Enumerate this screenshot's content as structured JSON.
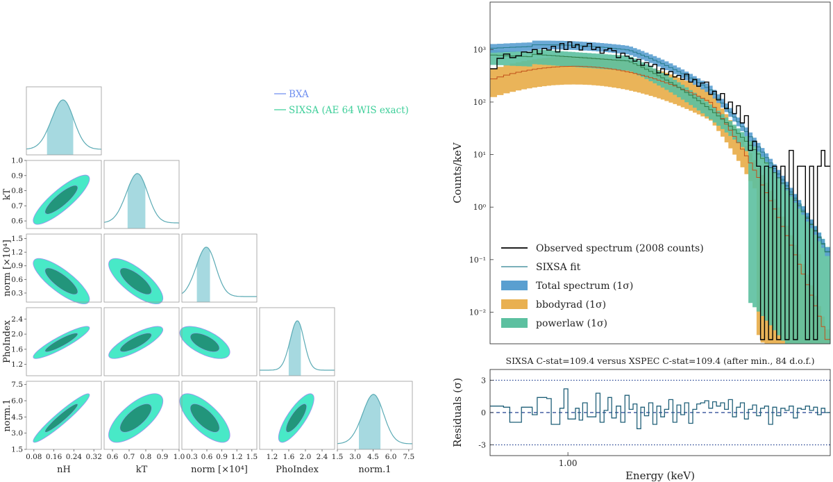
{
  "chart_data": [
    {
      "type": "corner",
      "title": "",
      "parameters": [
        "nH",
        "kT",
        "norm [×10⁴]",
        "PhoIndex",
        "norm.1"
      ],
      "param_short": [
        "nH",
        "kT",
        "norm [×10⁴]",
        "PhoIndex",
        "norm.1"
      ],
      "xlabels": [
        "nH",
        "kT",
        "norm [×10⁴]",
        "PhoIndex",
        "norm.1"
      ],
      "ylabels": [
        "",
        "kT",
        "norm [×10⁴]",
        "PhoIndex",
        "norm.1"
      ],
      "ranges": [
        [
          0.05,
          0.35
        ],
        [
          0.55,
          1.0
        ],
        [
          0.1,
          1.6
        ],
        [
          0.9,
          2.7
        ],
        [
          1.5,
          7.8
        ]
      ],
      "x_ticks": [
        [
          "0.08",
          "0.16",
          "0.24",
          "0.32"
        ],
        [
          "0.6",
          "0.7",
          "0.8",
          "0.9",
          "1.0"
        ],
        [
          "0.3",
          "0.6",
          "0.9",
          "1.2",
          "1.5"
        ],
        [
          "1.2",
          "1.6",
          "2.0",
          "2.4"
        ],
        [
          "1.5",
          "3.0",
          "4.5",
          "6.0",
          "7.5"
        ]
      ],
      "y_ticks": [
        [],
        [
          "0.6",
          "0.7",
          "0.8",
          "0.9",
          "1.0"
        ],
        [
          "0.3",
          "0.6",
          "0.9",
          "1.2",
          "1.5"
        ],
        [
          "1.2",
          "1.6",
          "2.0",
          "2.4"
        ],
        [
          "1.5",
          "3.0",
          "4.5",
          "6.0",
          "7.5"
        ]
      ],
      "x_tick_values": [
        [
          0.08,
          0.16,
          0.24,
          0.32
        ],
        [
          0.6,
          0.7,
          0.8,
          0.9,
          1.0
        ],
        [
          0.3,
          0.6,
          0.9,
          1.2,
          1.5
        ],
        [
          1.2,
          1.6,
          2.0,
          2.4
        ],
        [
          1.5,
          3.0,
          4.5,
          6.0,
          7.5
        ]
      ],
      "means": [
        0.19,
        0.74,
        0.56,
        1.78,
        4.4
      ],
      "sigmas": [
        0.045,
        0.065,
        0.2,
        0.17,
        0.9
      ],
      "correlations": [
        [
          1,
          0.85,
          -0.8,
          0.9,
          0.95
        ],
        [
          0.85,
          1,
          -0.75,
          0.8,
          0.7
        ],
        [
          -0.8,
          -0.75,
          1,
          -0.6,
          -0.7
        ],
        [
          0.9,
          0.8,
          -0.6,
          1,
          0.8
        ],
        [
          0.95,
          0.7,
          -0.7,
          0.8,
          1
        ]
      ],
      "credible_intervals": [
        [
          0.13,
          0.24
        ],
        [
          0.69,
          0.8
        ],
        [
          0.4,
          0.68
        ],
        [
          1.58,
          1.9
        ],
        [
          3.3,
          5.2
        ]
      ],
      "legend": [
        {
          "name": "BXA",
          "color": "#6f8ff0"
        },
        {
          "name": "SIXSA (AE 64 WIS exact)",
          "color": "#3fcf9a"
        }
      ],
      "colors": {
        "contour_outer": "#3ee8c4",
        "contour_inner": "#1e8c72",
        "hist_fill": "#a6d9e0",
        "hist_line": "#5aaab4",
        "bxa_edge": "#9d8ff0"
      }
    },
    {
      "type": "step",
      "xlabel": "",
      "ylabel": "Counts/keV",
      "xscale": "log",
      "yscale": "log",
      "xlim": [
        0.55,
        7.5
      ],
      "ylim": [
        0.0025,
        8000
      ],
      "y_tick_labels": [
        "10⁻²",
        "10⁻¹",
        "10⁰",
        "10¹",
        "10²",
        "10³"
      ],
      "y_tick_values": [
        0.01,
        0.1,
        1,
        10,
        100,
        1000
      ],
      "legend_position": "lower-left",
      "series": [
        {
          "name": "Observed spectrum (2008 counts)",
          "kind": "step",
          "color": "#000000"
        },
        {
          "name": "SIXSA fit",
          "kind": "line",
          "color": "#2a7f8f"
        },
        {
          "name": "Total spectrum (1σ)",
          "kind": "band",
          "color": "#5a9fd0"
        },
        {
          "name": "bbodyrad (1σ)",
          "kind": "band",
          "color": "#e9b050"
        },
        {
          "name": "powerlaw (1σ)",
          "kind": "band",
          "color": "#5cc0a0"
        }
      ],
      "bin_edges": [
        0.55,
        0.58,
        0.61,
        0.64,
        0.67,
        0.7,
        0.73,
        0.76,
        0.79,
        0.82,
        0.85,
        0.88,
        0.91,
        0.94,
        0.97,
        1.0,
        1.03,
        1.06,
        1.09,
        1.12,
        1.16,
        1.2,
        1.24,
        1.28,
        1.32,
        1.36,
        1.4,
        1.45,
        1.5,
        1.55,
        1.6,
        1.65,
        1.7,
        1.75,
        1.8,
        1.86,
        1.92,
        1.98,
        2.04,
        2.1,
        2.17,
        2.24,
        2.31,
        2.38,
        2.45,
        2.53,
        2.61,
        2.69,
        2.77,
        2.86,
        2.95,
        3.04,
        3.13,
        3.23,
        3.33,
        3.43,
        3.54,
        3.65,
        3.76,
        3.88,
        4.0,
        4.13,
        4.26,
        4.39,
        4.53,
        4.67,
        4.82,
        4.97,
        5.13,
        5.3,
        5.47,
        5.65,
        5.83,
        6.0,
        6.2,
        6.4,
        6.6,
        6.8,
        7.0,
        7.2,
        7.5
      ],
      "observed": [
        430,
        680,
        820,
        700,
        760,
        900,
        880,
        1000,
        830,
        1050,
        980,
        1150,
        900,
        1300,
        1000,
        1400,
        1100,
        1250,
        980,
        1150,
        1300,
        1000,
        1100,
        850,
        980,
        1050,
        950,
        700,
        850,
        750,
        680,
        600,
        650,
        500,
        560,
        480,
        520,
        360,
        430,
        330,
        380,
        300,
        320,
        270,
        340,
        240,
        270,
        200,
        230,
        240,
        140,
        160,
        110,
        145,
        75,
        100,
        60,
        85,
        40,
        55,
        12,
        18,
        6,
        0.003,
        6,
        0.003,
        6,
        0.003,
        6,
        0.003,
        12,
        0.003,
        6,
        6,
        0.003,
        6,
        0.003,
        6,
        12,
        6
      ],
      "component_params": {
        "total_peak": 1050,
        "bb_peak": 480,
        "pl_peak": 780
      },
      "annotations": []
    },
    {
      "type": "step",
      "title": "SIXSA C-stat=109.4 versus XSPEC C-stat=109.4 (after min., 84 d.o.f.)",
      "xlabel": "Energy (keV)",
      "ylabel": "Residuals (σ)",
      "xscale": "log",
      "xlim": [
        0.55,
        7.5
      ],
      "ylim": [
        -4,
        4
      ],
      "x_tick_labels": [
        "1.00"
      ],
      "x_tick_values": [
        1.0
      ],
      "y_tick_labels": [
        "-3",
        "0",
        "3"
      ],
      "y_tick_values": [
        -3,
        0,
        3
      ],
      "hlines": [
        {
          "y": 3,
          "style": "dotted"
        },
        {
          "y": 0,
          "style": "dashed"
        },
        {
          "y": -3,
          "style": "dotted"
        }
      ],
      "residuals": [
        0.6,
        0.6,
        0.5,
        -0.9,
        -0.9,
        0.5,
        0.5,
        -0.2,
        1.4,
        1.4,
        1.3,
        -1.1,
        -1.1,
        0.4,
        2.2,
        -0.6,
        -0.6,
        0.4,
        -0.7,
        0.9,
        -0.4,
        -0.4,
        1.8,
        -0.9,
        0.2,
        1.4,
        -0.5,
        0.6,
        -0.9,
        1.6,
        0.3,
        0.8,
        -1.5,
        0.5,
        -0.3,
        0.9,
        -1.1,
        0.6,
        -0.4,
        0.3,
        1.2,
        -0.9,
        0.7,
        -0.2,
        0.9,
        -1.0,
        0.3,
        0.8,
        0.9,
        1.1,
        0.4,
        1.0,
        0.6,
        0.9,
        0.3,
        1.2,
        -0.4,
        0.5,
        0.9,
        -0.6,
        0.3,
        0.7,
        -0.3,
        0.4,
        0.6,
        -1.1,
        0.5,
        -0.3,
        0.4,
        0.2,
        0.6,
        -0.5,
        0.4,
        0.3,
        0.6,
        0.2,
        0.5,
        -0.2,
        0.4,
        0.0
      ],
      "color": "#1f5f78"
    }
  ]
}
